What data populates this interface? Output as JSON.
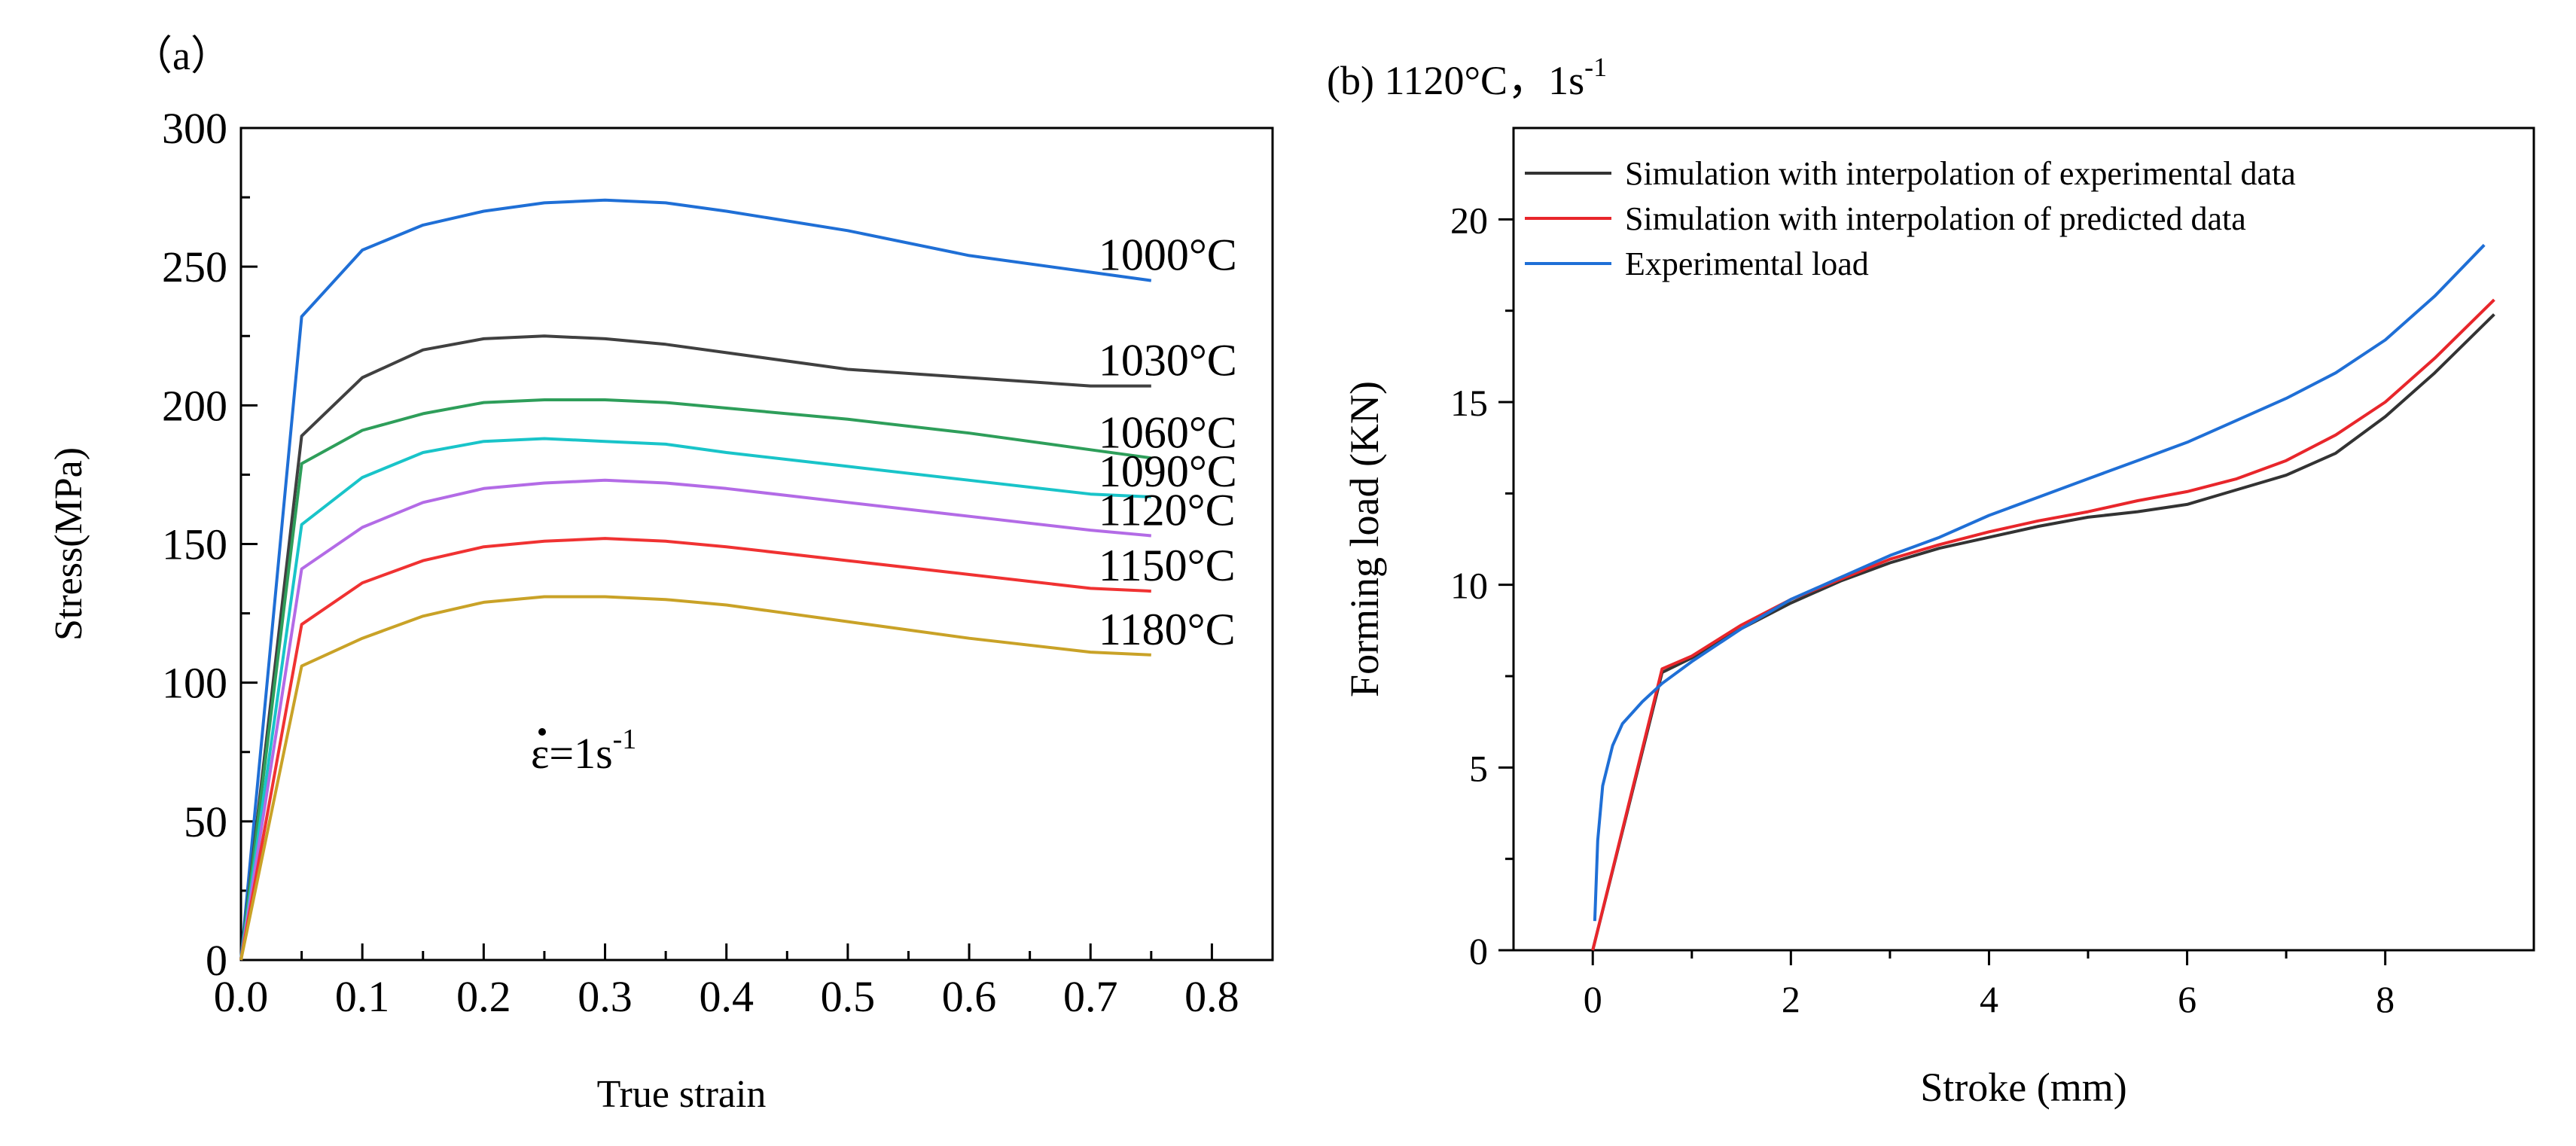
{
  "chart_data": [
    {
      "type": "line",
      "panel_label": "（a）",
      "xlabel": "True strain",
      "ylabel": "Stress(MPa)",
      "xlim": [
        0,
        0.85
      ],
      "ylim": [
        0,
        300
      ],
      "xticks": [
        "0.0",
        "0.1",
        "0.2",
        "0.3",
        "0.4",
        "0.5",
        "0.6",
        "0.7",
        "0.8"
      ],
      "yticks": [
        "0",
        "50",
        "100",
        "150",
        "200",
        "250",
        "300"
      ],
      "annotation": {
        "main": "ε=1s",
        "sup": "-1"
      },
      "legend": "none",
      "grid": false,
      "series": [
        {
          "name": "1000°C",
          "color": "#1f6fd6",
          "x": [
            0,
            0.05,
            0.1,
            0.15,
            0.2,
            0.25,
            0.3,
            0.35,
            0.4,
            0.5,
            0.6,
            0.7,
            0.75
          ],
          "y": [
            0,
            232,
            256,
            265,
            270,
            273,
            274,
            273,
            270,
            263,
            254,
            248,
            245
          ]
        },
        {
          "name": "1030°C",
          "color": "#404040",
          "x": [
            0,
            0.05,
            0.1,
            0.15,
            0.2,
            0.25,
            0.3,
            0.35,
            0.4,
            0.5,
            0.6,
            0.7,
            0.75
          ],
          "y": [
            0,
            189,
            210,
            220,
            224,
            225,
            224,
            222,
            219,
            213,
            210,
            207,
            207
          ]
        },
        {
          "name": "1060°C",
          "color": "#2e9e5a",
          "x": [
            0,
            0.05,
            0.1,
            0.15,
            0.2,
            0.25,
            0.3,
            0.35,
            0.4,
            0.5,
            0.6,
            0.7,
            0.75
          ],
          "y": [
            0,
            179,
            191,
            197,
            201,
            202,
            202,
            201,
            199,
            195,
            190,
            184,
            181
          ]
        },
        {
          "name": "1090°C",
          "color": "#19c4c9",
          "x": [
            0,
            0.05,
            0.1,
            0.15,
            0.2,
            0.25,
            0.3,
            0.35,
            0.4,
            0.5,
            0.6,
            0.7,
            0.75
          ],
          "y": [
            0,
            157,
            174,
            183,
            187,
            188,
            187,
            186,
            183,
            178,
            173,
            168,
            167
          ]
        },
        {
          "name": "1120°C",
          "color": "#b36be6",
          "x": [
            0,
            0.05,
            0.1,
            0.15,
            0.2,
            0.25,
            0.3,
            0.35,
            0.4,
            0.5,
            0.6,
            0.7,
            0.75
          ],
          "y": [
            0,
            141,
            156,
            165,
            170,
            172,
            173,
            172,
            170,
            165,
            160,
            155,
            153
          ]
        },
        {
          "name": "1150°C",
          "color": "#f03232",
          "x": [
            0,
            0.05,
            0.1,
            0.15,
            0.2,
            0.25,
            0.3,
            0.35,
            0.4,
            0.5,
            0.6,
            0.7,
            0.75
          ],
          "y": [
            0,
            121,
            136,
            144,
            149,
            151,
            152,
            151,
            149,
            144,
            139,
            134,
            133
          ]
        },
        {
          "name": "1180°C",
          "color": "#c9a227",
          "x": [
            0,
            0.05,
            0.1,
            0.15,
            0.2,
            0.25,
            0.3,
            0.35,
            0.4,
            0.5,
            0.6,
            0.7,
            0.75
          ],
          "y": [
            0,
            106,
            116,
            124,
            129,
            131,
            131,
            130,
            128,
            122,
            116,
            111,
            110
          ]
        }
      ]
    },
    {
      "type": "line",
      "panel_label": {
        "main": "(b) 1120°C，1s",
        "sup": "-1"
      },
      "xlabel": "Stroke (mm)",
      "ylabel": "Forming load (KN)",
      "xlim": [
        -0.8,
        9.5
      ],
      "ylim": [
        0,
        22.5
      ],
      "xticks": [
        "0",
        "2",
        "4",
        "6",
        "8"
      ],
      "yticks": [
        "0",
        "5",
        "10",
        "15",
        "20"
      ],
      "legend": "top-left",
      "grid": false,
      "series": [
        {
          "name": "Simulation with interpolation of experimental data",
          "color": "#333333",
          "x": [
            0,
            0.7,
            1.0,
            1.5,
            2.0,
            2.5,
            3.0,
            3.5,
            4.0,
            4.5,
            5.0,
            5.5,
            6.0,
            6.5,
            7.0,
            7.5,
            8.0,
            8.5,
            9.1
          ],
          "y": [
            0,
            7.6,
            8.0,
            8.8,
            9.5,
            10.1,
            10.6,
            11.0,
            11.3,
            11.6,
            11.85,
            12.0,
            12.2,
            12.6,
            13.0,
            13.6,
            14.6,
            15.8,
            17.4
          ]
        },
        {
          "name": "Simulation with interpolation of predicted data",
          "color": "#e8262b",
          "x": [
            0,
            0.7,
            1.0,
            1.5,
            2.0,
            2.5,
            3.0,
            3.5,
            4.0,
            4.5,
            5.0,
            5.5,
            6.0,
            6.5,
            7.0,
            7.5,
            8.0,
            8.5,
            9.1
          ],
          "y": [
            0,
            7.7,
            8.05,
            8.9,
            9.6,
            10.15,
            10.7,
            11.1,
            11.45,
            11.75,
            12.0,
            12.3,
            12.55,
            12.9,
            13.4,
            14.1,
            15.0,
            16.2,
            17.8
          ]
        },
        {
          "name": "Experimental load",
          "color": "#1f6fd6",
          "x": [
            0.02,
            0.05,
            0.1,
            0.2,
            0.3,
            0.5,
            0.7,
            1.0,
            1.5,
            2.0,
            2.5,
            3.0,
            3.5,
            4.0,
            4.5,
            5.0,
            5.5,
            6.0,
            6.5,
            7.0,
            7.5,
            8.0,
            8.5,
            9.0
          ],
          "y": [
            0.8,
            3.0,
            4.5,
            5.6,
            6.2,
            6.8,
            7.3,
            7.9,
            8.8,
            9.6,
            10.2,
            10.8,
            11.3,
            11.9,
            12.4,
            12.9,
            13.4,
            13.9,
            14.5,
            15.1,
            15.8,
            16.7,
            17.9,
            19.3
          ]
        }
      ]
    }
  ]
}
